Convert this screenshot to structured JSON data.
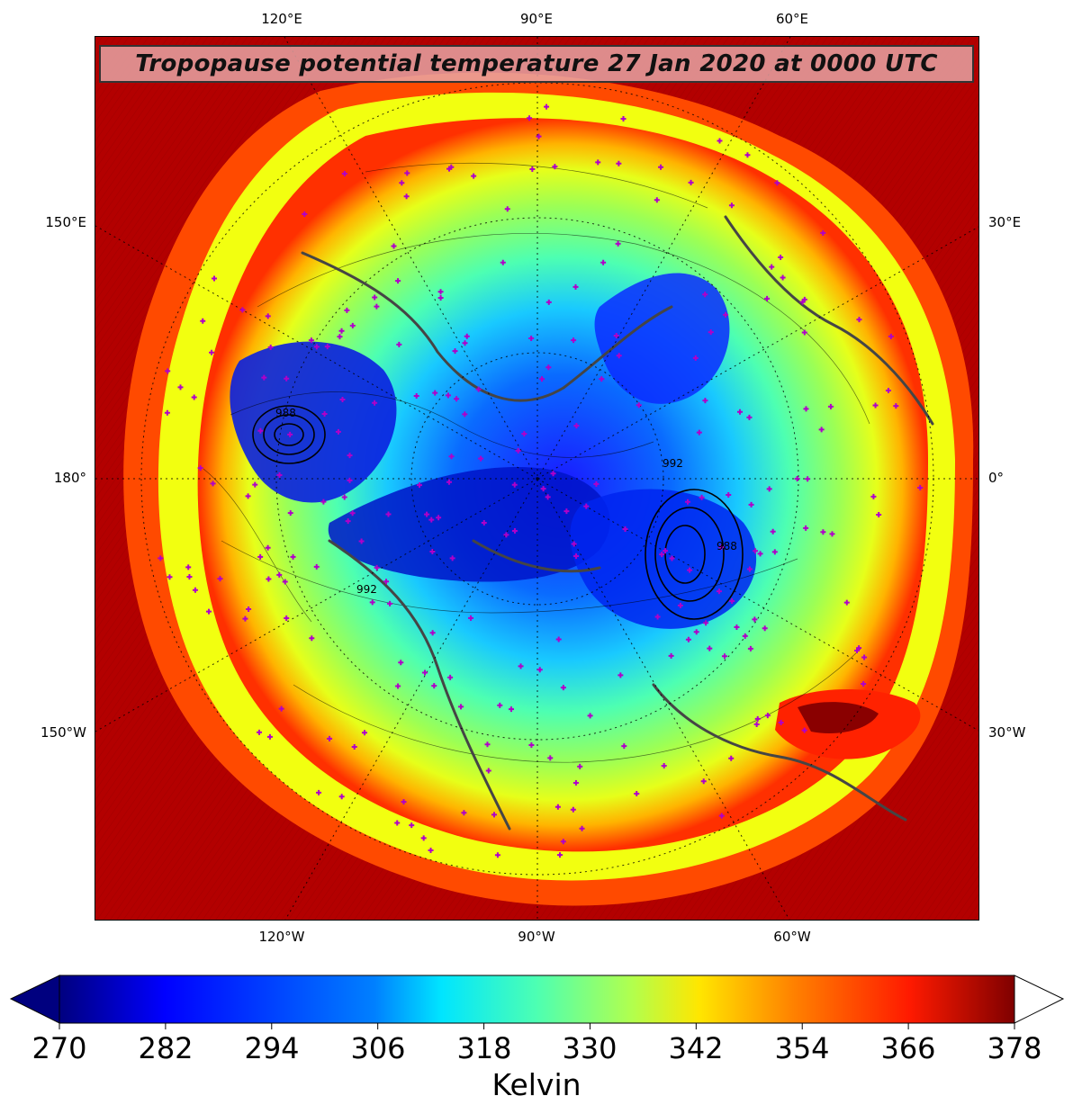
{
  "title": "Tropopause potential temperature 27 Jan 2020 at 0000 UTC",
  "map": {
    "projection": "north-polar-stereographic",
    "fill_field": "tropopause potential temperature",
    "contour_labels": [
      "992",
      "992",
      "988",
      "988"
    ],
    "station_marker_color": "#b000c8",
    "coastline_color": "#454545"
  },
  "lon_ticks": {
    "top": [
      "120°E",
      "90°E",
      "60°E"
    ],
    "bottom": [
      "120°W",
      "90°W",
      "60°W"
    ],
    "left": [
      "150°E",
      "180°",
      "150°W"
    ],
    "right": [
      "30°E",
      "0°",
      "30°W"
    ]
  },
  "colorbar": {
    "unit": "Kelvin",
    "min": 270,
    "max": 378,
    "tick_labels": [
      "270",
      "282",
      "294",
      "306",
      "318",
      "330",
      "342",
      "354",
      "366",
      "378"
    ],
    "extend": "both",
    "colormap": "jet",
    "colors": [
      "#00007f",
      "#0000ff",
      "#0080ff",
      "#00e5ff",
      "#4dffb2",
      "#b2ff4d",
      "#ffe600",
      "#ff8000",
      "#ff1a00",
      "#7f0000"
    ]
  }
}
